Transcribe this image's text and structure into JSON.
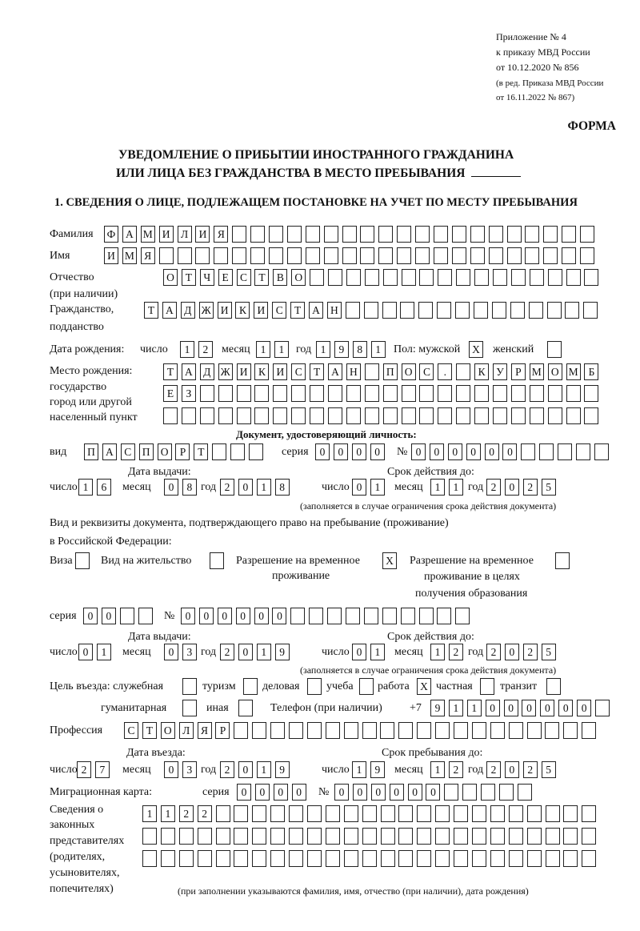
{
  "header": {
    "annex": [
      "Приложение № 4",
      "к приказу МВД России",
      "от 10.12.2020 № 856",
      "(в ред. Приказа МВД России",
      "от 16.11.2022 № 867)"
    ],
    "form_label": "ФОРМА",
    "title": [
      "УВЕДОМЛЕНИЕ О ПРИБЫТИИ ИНОСТРАННОГО ГРАЖДАНИНА",
      "ИЛИ ЛИЦА БЕЗ ГРАЖДАНСТВА В МЕСТО ПРЕБЫВАНИЯ"
    ],
    "section_title": "1. СВЕДЕНИЯ О ЛИЦЕ, ПОДЛЕЖАЩЕМ ПОСТАНОВКЕ НА УЧЕТ ПО МЕСТУ ПРЕБЫВАНИЯ"
  },
  "labels": {
    "surname": "Фамилия",
    "name": "Имя",
    "patronymic": "Отчество",
    "patronymic_note": "(при наличии)",
    "citizenship": "Гражданство,",
    "citizenship2": "подданство",
    "dob": "Дата рождения:",
    "day": "число",
    "month": "месяц",
    "year": "год",
    "sex": "Пол: мужской",
    "female": "женский",
    "birthplace": [
      "Место рождения:",
      "государство",
      "город или другой",
      "населенный пункт"
    ],
    "id_doc": "Документ, удостоверяющий личность:",
    "kind": "вид",
    "series": "серия",
    "number": "№",
    "issue_date": "Дата выдачи:",
    "valid_until": "Срок действия до:",
    "validity_note": "(заполняется в случае ограничения срока действия документа)",
    "right_doc": "Вид и реквизиты документа, подтверждающего право на пребывание (проживание)",
    "right_doc2": "в Российской Федерации:",
    "visa": "Виза",
    "residence": "Вид на жительство",
    "temp_res": [
      "Разрешение на временное",
      "проживание"
    ],
    "temp_res_edu": [
      "Разрешение на временное",
      "проживание в целях",
      "получения образования"
    ],
    "purpose": "Цель въезда: служебная",
    "tourism": "туризм",
    "business": "деловая",
    "study": "учеба",
    "work": "работа",
    "private": "частная",
    "transit": "транзит",
    "humanitarian": "гуманитарная",
    "other": "иная",
    "phone": "Телефон (при наличии)",
    "phone_prefix": "+7",
    "profession": "Профессия",
    "entry_date": "Дата въезда:",
    "stay_until": "Срок пребывания до:",
    "migration_card": "Миграционная карта:",
    "reps": [
      "Сведения о",
      "законных",
      "представителях",
      "(родителях,",
      "усыновителях,",
      "попечителях)"
    ],
    "reps_note": "(при заполнении указываются фамилия, имя, отчество (при наличии), дата рождения)"
  },
  "fields": {
    "surname": [
      "Ф",
      "А",
      "М",
      "И",
      "Л",
      "И",
      "Я",
      "",
      "",
      "",
      "",
      "",
      "",
      "",
      "",
      "",
      "",
      "",
      "",
      "",
      "",
      "",
      "",
      "",
      "",
      "",
      ""
    ],
    "name": [
      "И",
      "М",
      "Я",
      "",
      "",
      "",
      "",
      "",
      "",
      "",
      "",
      "",
      "",
      "",
      "",
      "",
      "",
      "",
      "",
      "",
      "",
      "",
      "",
      "",
      "",
      "",
      ""
    ],
    "patronymic": [
      "О",
      "Т",
      "Ч",
      "Е",
      "С",
      "Т",
      "В",
      "О",
      "",
      "",
      "",
      "",
      "",
      "",
      "",
      "",
      "",
      "",
      "",
      "",
      "",
      "",
      "",
      ""
    ],
    "citizenship": [
      "Т",
      "А",
      "Д",
      "Ж",
      "И",
      "К",
      "И",
      "С",
      "Т",
      "А",
      "Н",
      "",
      "",
      "",
      "",
      "",
      "",
      "",
      "",
      "",
      "",
      "",
      "",
      "",
      ""
    ],
    "dob_day": [
      "1",
      "2"
    ],
    "dob_month": [
      "1",
      "1"
    ],
    "dob_year": [
      "1",
      "9",
      "8",
      "1"
    ],
    "sex_male": [
      "X"
    ],
    "sex_female": [
      ""
    ],
    "birthplace_1": [
      "Т",
      "А",
      "Д",
      "Ж",
      "И",
      "К",
      "И",
      "С",
      "Т",
      "А",
      "Н",
      "",
      "П",
      "О",
      "С",
      ".",
      "",
      "К",
      "У",
      "Р",
      "М",
      "О",
      "М",
      "Б"
    ],
    "birthplace_2": [
      "Е",
      "З",
      "",
      "",
      "",
      "",
      "",
      "",
      "",
      "",
      "",
      "",
      "",
      "",
      "",
      "",
      "",
      "",
      "",
      "",
      "",
      "",
      "",
      ""
    ],
    "birthplace_3": [
      "",
      "",
      "",
      "",
      "",
      "",
      "",
      "",
      "",
      "",
      "",
      "",
      "",
      "",
      "",
      "",
      "",
      "",
      "",
      "",
      "",
      "",
      "",
      ""
    ],
    "id_kind": [
      "П",
      "А",
      "С",
      "П",
      "О",
      "Р",
      "Т",
      "",
      "",
      ""
    ],
    "id_series": [
      "0",
      "0",
      "0",
      "0"
    ],
    "id_number": [
      "0",
      "0",
      "0",
      "0",
      "0",
      "0",
      "",
      "",
      "",
      "",
      ""
    ],
    "id_issue_day": [
      "1",
      "6"
    ],
    "id_issue_month": [
      "0",
      "8"
    ],
    "id_issue_year": [
      "2",
      "0",
      "1",
      "8"
    ],
    "id_valid_day": [
      "0",
      "1"
    ],
    "id_valid_month": [
      "1",
      "1"
    ],
    "id_valid_year": [
      "2",
      "0",
      "2",
      "5"
    ],
    "visa": [
      ""
    ],
    "residence": [
      ""
    ],
    "temp_res": [
      "X"
    ],
    "temp_res_edu": [
      ""
    ],
    "rd_series": [
      "0",
      "0",
      "",
      ""
    ],
    "rd_number": [
      "0",
      "0",
      "0",
      "0",
      "0",
      "0",
      "",
      "",
      "",
      "",
      "",
      "",
      "",
      "",
      "",
      ""
    ],
    "rd_issue_day": [
      "0",
      "1"
    ],
    "rd_issue_month": [
      "0",
      "3"
    ],
    "rd_issue_year": [
      "2",
      "0",
      "1",
      "9"
    ],
    "rd_valid_day": [
      "0",
      "1"
    ],
    "rd_valid_month": [
      "1",
      "2"
    ],
    "rd_valid_year": [
      "2",
      "0",
      "2",
      "5"
    ],
    "p_official": [
      ""
    ],
    "p_tourism": [
      ""
    ],
    "p_business": [
      ""
    ],
    "p_study": [
      ""
    ],
    "p_work": [
      "X"
    ],
    "p_private": [
      ""
    ],
    "p_transit": [
      ""
    ],
    "p_humanitarian": [
      ""
    ],
    "p_other": [
      ""
    ],
    "phone": [
      "9",
      "1",
      "1",
      "0",
      "0",
      "0",
      "0",
      "0",
      "0",
      ""
    ],
    "profession": [
      "С",
      "Т",
      "О",
      "Л",
      "Я",
      "Р",
      "",
      "",
      "",
      "",
      "",
      "",
      "",
      "",
      "",
      "",
      "",
      "",
      "",
      "",
      "",
      "",
      "",
      "",
      "",
      ""
    ],
    "entry_day": [
      "2",
      "7"
    ],
    "entry_month": [
      "0",
      "3"
    ],
    "entry_year": [
      "2",
      "0",
      "1",
      "9"
    ],
    "stay_day": [
      "1",
      "9"
    ],
    "stay_month": [
      "1",
      "2"
    ],
    "stay_year": [
      "2",
      "0",
      "2",
      "5"
    ],
    "mc_series": [
      "0",
      "0",
      "0",
      "0"
    ],
    "mc_number": [
      "0",
      "0",
      "0",
      "0",
      "0",
      "0",
      "",
      "",
      "",
      "",
      ""
    ],
    "reps_1": [
      "1",
      "1",
      "2",
      "2",
      "",
      "",
      "",
      "",
      "",
      "",
      "",
      "",
      "",
      "",
      "",
      "",
      "",
      "",
      "",
      "",
      "",
      "",
      "",
      "",
      ""
    ],
    "reps_2": [
      "",
      "",
      "",
      "",
      "",
      "",
      "",
      "",
      "",
      "",
      "",
      "",
      "",
      "",
      "",
      "",
      "",
      "",
      "",
      "",
      "",
      "",
      "",
      "",
      ""
    ],
    "reps_3": [
      "",
      "",
      "",
      "",
      "",
      "",
      "",
      "",
      "",
      "",
      "",
      "",
      "",
      "",
      "",
      "",
      "",
      "",
      "",
      "",
      "",
      "",
      "",
      "",
      ""
    ]
  }
}
